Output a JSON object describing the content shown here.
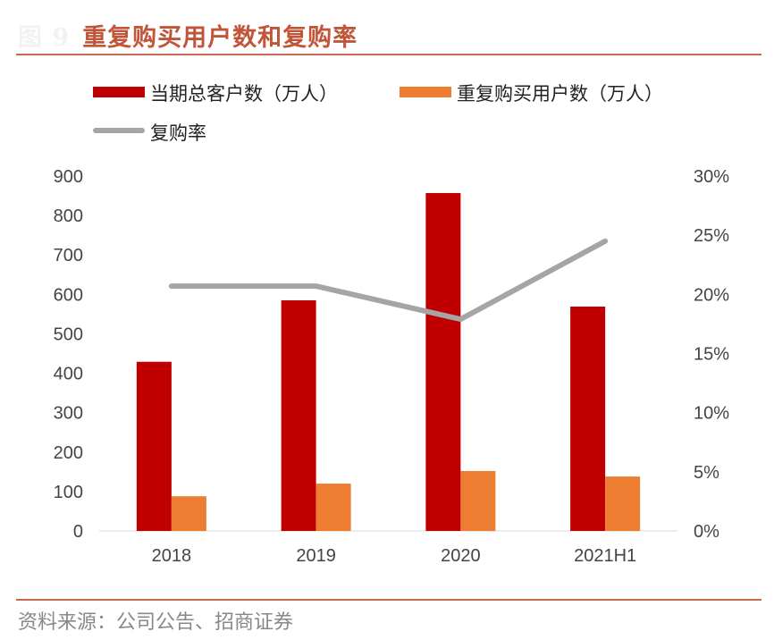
{
  "header": {
    "figure_label": "图 9",
    "title": "重复购买用户数和复购率"
  },
  "source": "资料来源：公司公告、招商证券",
  "colors": {
    "total": "#c00000",
    "repeat": "#ed7d31",
    "rate": "#a5a5a5",
    "accent": "#c9694f"
  },
  "chart_data": {
    "type": "bar+line",
    "categories": [
      "2018",
      "2019",
      "2020",
      "2021H1"
    ],
    "series": [
      {
        "name": "当期总客户数（万人）",
        "type": "bar",
        "axis": "left",
        "values": [
          429,
          585,
          857,
          569
        ]
      },
      {
        "name": "重复购买用户数（万人）",
        "type": "bar",
        "axis": "left",
        "values": [
          88,
          120,
          152,
          138
        ]
      },
      {
        "name": "复购率",
        "type": "line",
        "axis": "right",
        "values": [
          20.7,
          20.7,
          17.9,
          24.5
        ]
      }
    ],
    "ylim": [
      0,
      900
    ],
    "yticks": [
      "0",
      "100",
      "200",
      "300",
      "400",
      "500",
      "600",
      "700",
      "800",
      "900"
    ],
    "y2lim": [
      0,
      30
    ],
    "y2ticks": [
      "0%",
      "5%",
      "10%",
      "15%",
      "20%",
      "25%",
      "30%"
    ],
    "legend_position": "top-left",
    "grid": false
  }
}
